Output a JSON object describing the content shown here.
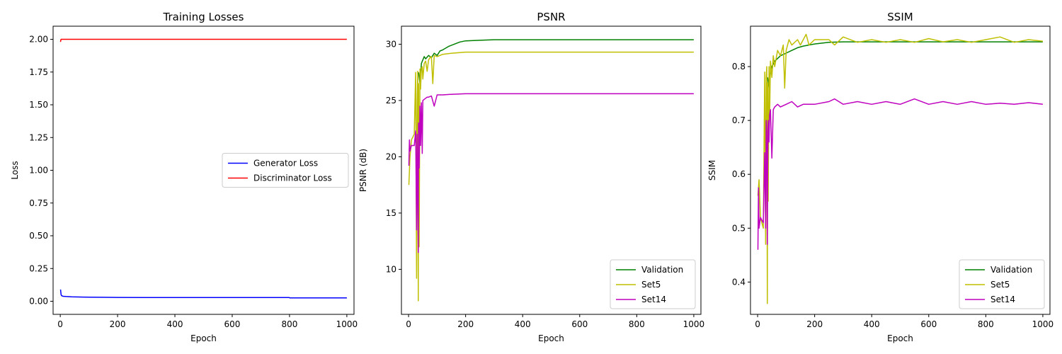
{
  "chart_data": [
    {
      "type": "line",
      "title": "Training Losses",
      "xlabel": "Epoch",
      "ylabel": "Loss",
      "xlim": [
        -25,
        1025
      ],
      "ylim": [
        -0.1,
        2.1
      ],
      "xticks": [
        0,
        200,
        400,
        600,
        800,
        1000
      ],
      "yticks": [
        0.0,
        0.25,
        0.5,
        0.75,
        1.0,
        1.25,
        1.5,
        1.75,
        2.0
      ],
      "ytick_labels": [
        "0.00",
        "0.25",
        "0.50",
        "0.75",
        "1.00",
        "1.25",
        "1.50",
        "1.75",
        "2.00"
      ],
      "legend": {
        "placement": "center-right"
      },
      "series": [
        {
          "name": "Generator Loss",
          "color": "#0000ff",
          "x": [
            1,
            3,
            5,
            10,
            20,
            40,
            80,
            150,
            200,
            300,
            400,
            500,
            600,
            700,
            799,
            801,
            900,
            1000
          ],
          "y": [
            0.09,
            0.05,
            0.042,
            0.038,
            0.036,
            0.034,
            0.032,
            0.03,
            0.029,
            0.028,
            0.028,
            0.028,
            0.028,
            0.028,
            0.028,
            0.026,
            0.026,
            0.026
          ]
        },
        {
          "name": "Discriminator Loss",
          "color": "#ff0000",
          "x": [
            1,
            2,
            3,
            5,
            10,
            100,
            300,
            500,
            700,
            900,
            1000
          ],
          "y": [
            1.98,
            1.995,
            2.0,
            2.0,
            2.0,
            2.0,
            2.0,
            2.0,
            2.0,
            2.0,
            2.0
          ]
        }
      ]
    },
    {
      "type": "line",
      "title": "PSNR",
      "xlabel": "Epoch",
      "ylabel": "PSNR (dB)",
      "xlim": [
        -25,
        1025
      ],
      "ylim": [
        6.0,
        31.6
      ],
      "xticks": [
        0,
        200,
        400,
        600,
        800,
        1000
      ],
      "yticks": [
        10,
        15,
        20,
        25,
        30
      ],
      "ytick_labels": [
        "10",
        "15",
        "20",
        "25",
        "30"
      ],
      "legend": {
        "placement": "bottom-right"
      },
      "series": [
        {
          "name": "Validation",
          "color": "#008000",
          "x": [
            35,
            40,
            45,
            50,
            55,
            60,
            70,
            80,
            90,
            100,
            110,
            120,
            140,
            160,
            180,
            200,
            250,
            300,
            400,
            500,
            600,
            700,
            800,
            900,
            1000
          ],
          "y": [
            27.5,
            26.5,
            28.3,
            28.6,
            28.9,
            28.7,
            29.0,
            28.8,
            29.2,
            29.0,
            29.4,
            29.5,
            29.8,
            30.0,
            30.2,
            30.3,
            30.35,
            30.4,
            30.4,
            30.4,
            30.4,
            30.4,
            30.4,
            30.4,
            30.4
          ]
        },
        {
          "name": "Set5",
          "color": "#bfbf00",
          "x": [
            1,
            5,
            10,
            20,
            25,
            28,
            30,
            32,
            34,
            35,
            37,
            40,
            42,
            45,
            48,
            50,
            55,
            60,
            65,
            70,
            75,
            80,
            85,
            90,
            100,
            120,
            150,
            200,
            300,
            400,
            500,
            600,
            700,
            800,
            900,
            1000
          ],
          "y": [
            17.5,
            20.0,
            21.5,
            22.0,
            27.5,
            9.2,
            25.0,
            27.6,
            7.2,
            26.5,
            12.0,
            27.8,
            26.0,
            27.9,
            28.0,
            26.9,
            28.3,
            28.5,
            27.6,
            28.6,
            28.8,
            28.9,
            26.5,
            29.0,
            28.9,
            29.1,
            29.2,
            29.3,
            29.3,
            29.3,
            29.3,
            29.3,
            29.3,
            29.3,
            29.3,
            29.3
          ]
        },
        {
          "name": "Set14",
          "color": "#bf00bf",
          "x": [
            1,
            3,
            5,
            10,
            20,
            25,
            28,
            30,
            32,
            34,
            35,
            37,
            40,
            42,
            45,
            48,
            50,
            55,
            60,
            65,
            70,
            80,
            90,
            100,
            120,
            150,
            200,
            300,
            400,
            500,
            600,
            700,
            800,
            900,
            1000
          ],
          "y": [
            19.2,
            21.5,
            20.5,
            21.0,
            21.0,
            22.3,
            13.5,
            22.0,
            17.0,
            11.5,
            23.0,
            19.0,
            24.5,
            21.0,
            24.8,
            20.3,
            25.0,
            25.1,
            25.2,
            25.3,
            25.3,
            25.4,
            24.5,
            25.5,
            25.5,
            25.55,
            25.6,
            25.6,
            25.6,
            25.6,
            25.6,
            25.6,
            25.6,
            25.6,
            25.6
          ]
        }
      ]
    },
    {
      "type": "line",
      "title": "SSIM",
      "xlabel": "Epoch",
      "ylabel": "SSIM",
      "xlim": [
        -25,
        1025
      ],
      "ylim": [
        0.34,
        0.875
      ],
      "xticks": [
        0,
        200,
        400,
        600,
        800,
        1000
      ],
      "yticks": [
        0.4,
        0.5,
        0.6,
        0.7,
        0.8
      ],
      "ytick_labels": [
        "0.4",
        "0.5",
        "0.6",
        "0.7",
        "0.8"
      ],
      "legend": {
        "placement": "bottom-right"
      },
      "series": [
        {
          "name": "Validation",
          "color": "#008000",
          "x": [
            35,
            40,
            45,
            50,
            60,
            70,
            80,
            100,
            120,
            140,
            160,
            180,
            200,
            250,
            300,
            400,
            500,
            600,
            700,
            800,
            900,
            1000
          ],
          "y": [
            0.78,
            0.76,
            0.79,
            0.8,
            0.81,
            0.815,
            0.82,
            0.825,
            0.83,
            0.835,
            0.838,
            0.84,
            0.842,
            0.845,
            0.846,
            0.846,
            0.846,
            0.846,
            0.846,
            0.846,
            0.846,
            0.846
          ]
        },
        {
          "name": "Set5",
          "color": "#bfbf00",
          "x": [
            1,
            5,
            10,
            20,
            25,
            28,
            30,
            32,
            34,
            35,
            37,
            40,
            42,
            45,
            50,
            55,
            60,
            70,
            80,
            90,
            95,
            100,
            110,
            120,
            140,
            150,
            170,
            180,
            200,
            250,
            270,
            300,
            350,
            400,
            450,
            500,
            550,
            600,
            650,
            700,
            750,
            800,
            850,
            900,
            950,
            1000
          ],
          "y": [
            0.56,
            0.59,
            0.52,
            0.5,
            0.79,
            0.47,
            0.78,
            0.8,
            0.36,
            0.77,
            0.55,
            0.8,
            0.7,
            0.81,
            0.78,
            0.82,
            0.8,
            0.83,
            0.82,
            0.84,
            0.76,
            0.83,
            0.85,
            0.84,
            0.85,
            0.84,
            0.86,
            0.84,
            0.85,
            0.85,
            0.84,
            0.855,
            0.845,
            0.85,
            0.845,
            0.85,
            0.845,
            0.852,
            0.846,
            0.85,
            0.845,
            0.85,
            0.855,
            0.845,
            0.85,
            0.847
          ]
        },
        {
          "name": "Set14",
          "color": "#bf00bf",
          "x": [
            1,
            3,
            5,
            10,
            20,
            25,
            28,
            30,
            32,
            34,
            35,
            37,
            40,
            42,
            45,
            50,
            55,
            60,
            70,
            80,
            100,
            120,
            140,
            160,
            200,
            250,
            270,
            300,
            350,
            400,
            450,
            500,
            550,
            600,
            650,
            700,
            750,
            800,
            850,
            900,
            950,
            1000
          ],
          "y": [
            0.46,
            0.575,
            0.5,
            0.52,
            0.51,
            0.64,
            0.5,
            0.7,
            0.68,
            0.47,
            0.6,
            0.7,
            0.66,
            0.71,
            0.72,
            0.63,
            0.72,
            0.725,
            0.73,
            0.725,
            0.73,
            0.735,
            0.725,
            0.73,
            0.73,
            0.735,
            0.74,
            0.73,
            0.735,
            0.73,
            0.735,
            0.73,
            0.74,
            0.73,
            0.735,
            0.73,
            0.735,
            0.73,
            0.732,
            0.73,
            0.733,
            0.73
          ]
        }
      ]
    }
  ]
}
